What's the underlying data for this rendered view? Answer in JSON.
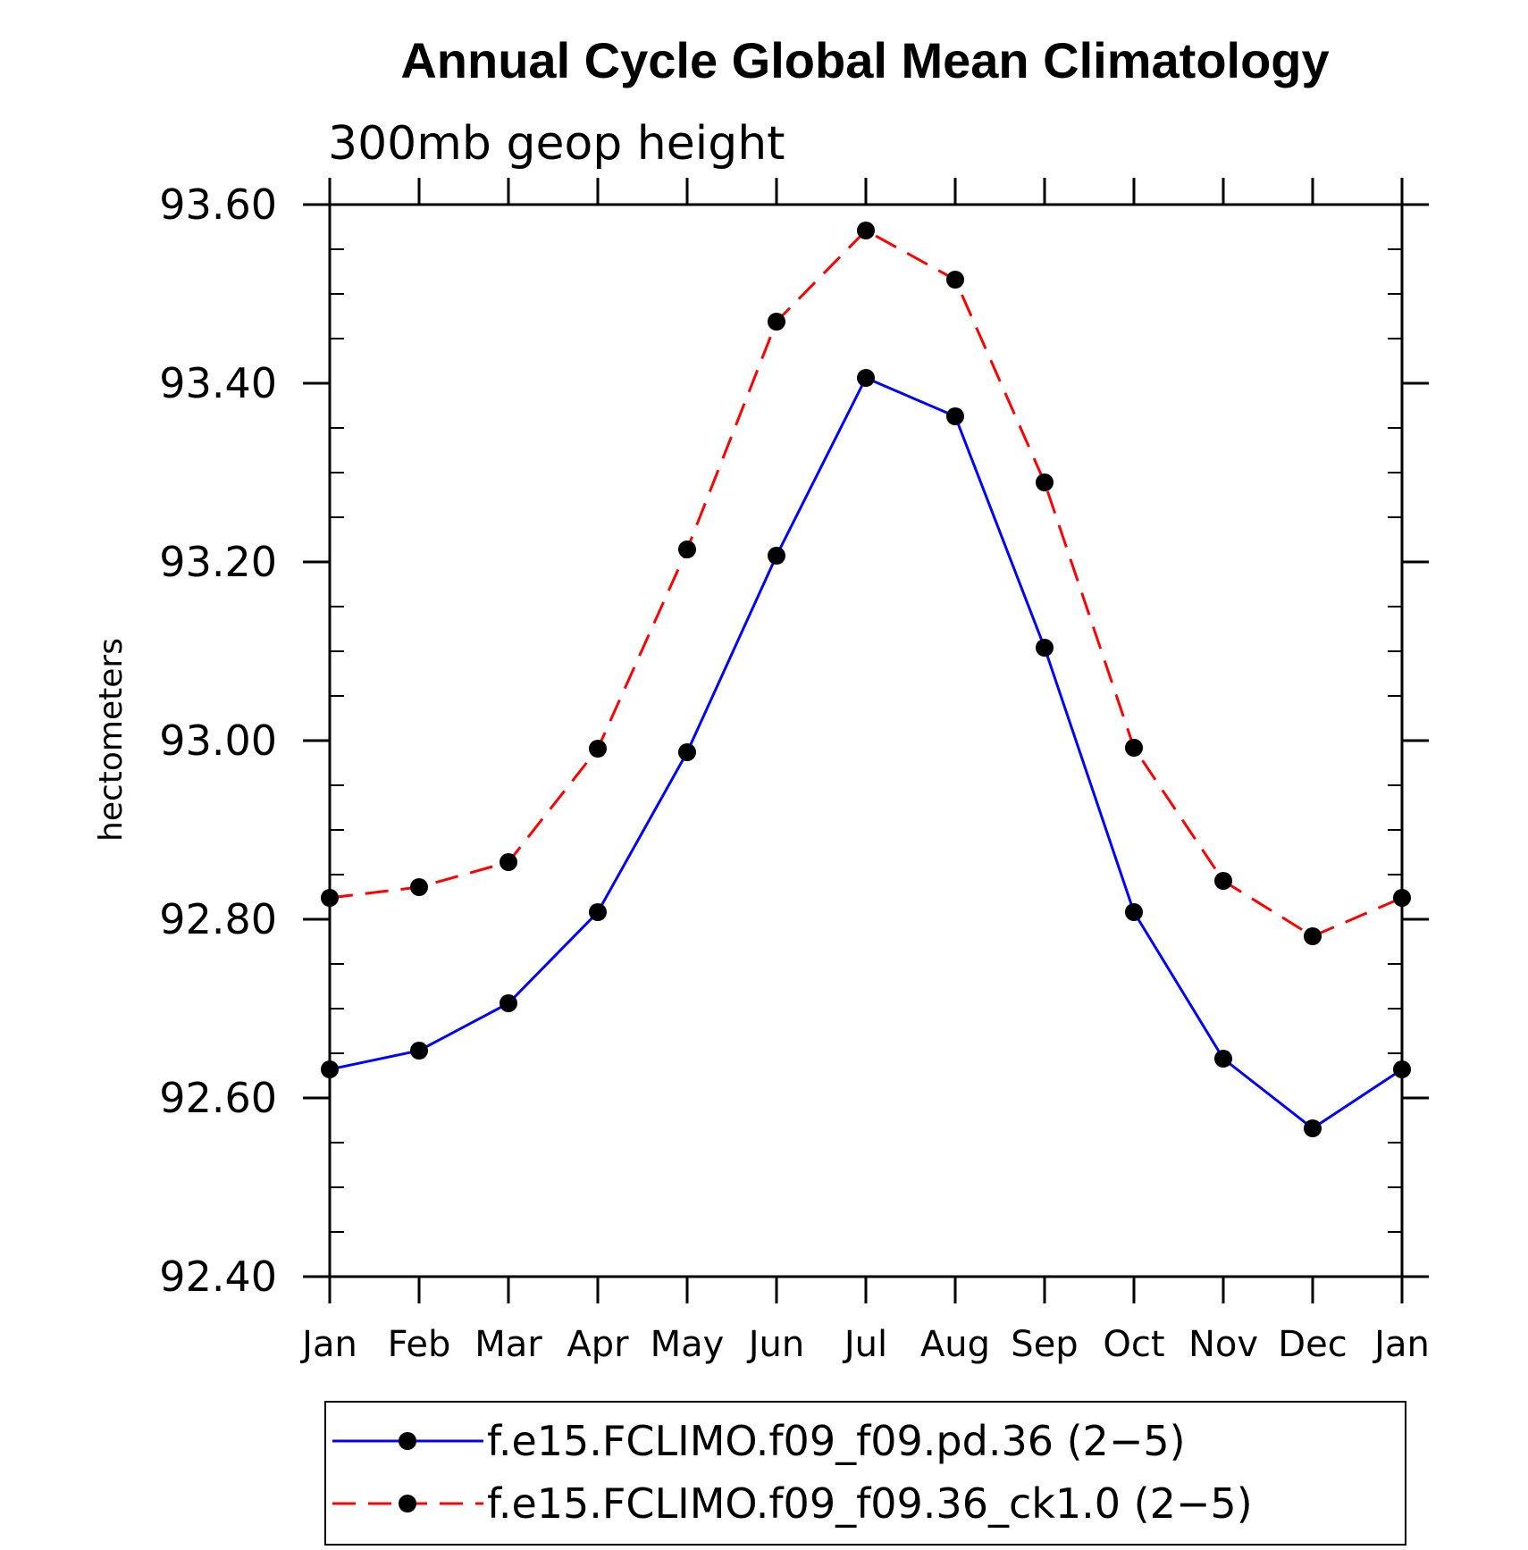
{
  "chart_data": {
    "type": "line",
    "title": "Annual Cycle Global Mean Climatology",
    "subtitle": "300mb geop height",
    "xlabel": "",
    "ylabel": "hectometers",
    "categories": [
      "Jan",
      "Feb",
      "Mar",
      "Apr",
      "May",
      "Jun",
      "Jul",
      "Aug",
      "Sep",
      "Oct",
      "Nov",
      "Dec",
      "Jan"
    ],
    "yticks": [
      "92.40",
      "92.60",
      "92.80",
      "93.00",
      "93.20",
      "93.40",
      "93.60"
    ],
    "ylim": [
      92.4,
      93.6
    ],
    "grid": false,
    "legend_position": "bottom",
    "series": [
      {
        "name": "f.e15.FCLIMO.f09_f09.pd.36 (2−5)",
        "color": "#0000ff",
        "dash": "solid",
        "values": [
          92.632,
          92.653,
          92.706,
          92.808,
          92.987,
          93.207,
          93.406,
          93.363,
          93.104,
          92.808,
          92.644,
          92.566,
          92.632
        ]
      },
      {
        "name": "f.e15.FCLIMO.f09_f09.36_ck1.0 (2−5)",
        "color": "#ff0000",
        "dash": "dashed",
        "values": [
          92.824,
          92.836,
          92.864,
          92.991,
          93.214,
          93.469,
          93.571,
          93.516,
          93.289,
          92.992,
          92.843,
          92.781,
          92.824
        ]
      }
    ]
  }
}
